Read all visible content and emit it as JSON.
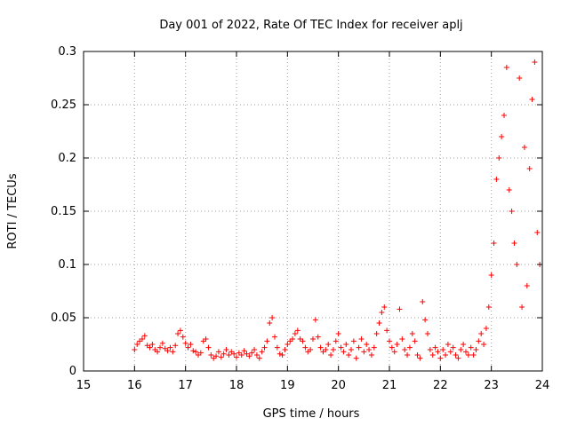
{
  "chart_data": {
    "type": "scatter",
    "title": "Day 001 of 2022, Rate Of TEC Index for receiver aplj",
    "xlabel": "GPS time / hours",
    "ylabel": "ROTI / TECUs",
    "xlim": [
      15,
      24
    ],
    "ylim": [
      0,
      0.3
    ],
    "grid": true,
    "xticks": [
      15,
      16,
      17,
      18,
      19,
      20,
      21,
      22,
      23,
      24
    ],
    "yticks": [
      0,
      0.05,
      0.1,
      0.15,
      0.2,
      0.25,
      0.3
    ],
    "xtick_labels": [
      "15",
      "16",
      "17",
      "18",
      "19",
      "20",
      "21",
      "22",
      "23",
      "24"
    ],
    "ytick_labels": [
      "0",
      "0.05",
      "0.1",
      "0.15",
      "0.2",
      "0.25",
      "0.3"
    ],
    "marker": "+",
    "marker_color": "#ff0000",
    "series": [
      {
        "name": "ROTI",
        "points": [
          [
            16.0,
            0.02
          ],
          [
            16.05,
            0.025
          ],
          [
            16.1,
            0.028
          ],
          [
            16.15,
            0.03
          ],
          [
            16.2,
            0.033
          ],
          [
            16.25,
            0.024
          ],
          [
            16.3,
            0.022
          ],
          [
            16.35,
            0.025
          ],
          [
            16.4,
            0.02
          ],
          [
            16.45,
            0.018
          ],
          [
            16.5,
            0.022
          ],
          [
            16.55,
            0.026
          ],
          [
            16.6,
            0.021
          ],
          [
            16.65,
            0.019
          ],
          [
            16.7,
            0.022
          ],
          [
            16.75,
            0.018
          ],
          [
            16.8,
            0.024
          ],
          [
            16.85,
            0.035
          ],
          [
            16.9,
            0.038
          ],
          [
            16.95,
            0.032
          ],
          [
            17.0,
            0.026
          ],
          [
            17.05,
            0.022
          ],
          [
            17.1,
            0.025
          ],
          [
            17.15,
            0.019
          ],
          [
            17.2,
            0.018
          ],
          [
            17.25,
            0.015
          ],
          [
            17.3,
            0.017
          ],
          [
            17.35,
            0.028
          ],
          [
            17.4,
            0.03
          ],
          [
            17.45,
            0.022
          ],
          [
            17.5,
            0.015
          ],
          [
            17.55,
            0.012
          ],
          [
            17.6,
            0.014
          ],
          [
            17.65,
            0.018
          ],
          [
            17.7,
            0.013
          ],
          [
            17.75,
            0.016
          ],
          [
            17.8,
            0.02
          ],
          [
            17.85,
            0.015
          ],
          [
            17.9,
            0.018
          ],
          [
            17.95,
            0.016
          ],
          [
            18.0,
            0.013
          ],
          [
            18.05,
            0.017
          ],
          [
            18.1,
            0.015
          ],
          [
            18.15,
            0.019
          ],
          [
            18.2,
            0.016
          ],
          [
            18.25,
            0.014
          ],
          [
            18.3,
            0.017
          ],
          [
            18.35,
            0.02
          ],
          [
            18.4,
            0.015
          ],
          [
            18.45,
            0.012
          ],
          [
            18.5,
            0.018
          ],
          [
            18.55,
            0.022
          ],
          [
            18.6,
            0.028
          ],
          [
            18.65,
            0.045
          ],
          [
            18.7,
            0.05
          ],
          [
            18.75,
            0.032
          ],
          [
            18.8,
            0.022
          ],
          [
            18.85,
            0.016
          ],
          [
            18.9,
            0.015
          ],
          [
            18.95,
            0.02
          ],
          [
            19.0,
            0.025
          ],
          [
            19.05,
            0.028
          ],
          [
            19.1,
            0.03
          ],
          [
            19.15,
            0.035
          ],
          [
            19.2,
            0.038
          ],
          [
            19.25,
            0.03
          ],
          [
            19.3,
            0.028
          ],
          [
            19.35,
            0.022
          ],
          [
            19.4,
            0.018
          ],
          [
            19.45,
            0.02
          ],
          [
            19.5,
            0.03
          ],
          [
            19.55,
            0.048
          ],
          [
            19.6,
            0.032
          ],
          [
            19.65,
            0.022
          ],
          [
            19.7,
            0.018
          ],
          [
            19.75,
            0.02
          ],
          [
            19.8,
            0.025
          ],
          [
            19.85,
            0.015
          ],
          [
            19.9,
            0.02
          ],
          [
            19.95,
            0.028
          ],
          [
            20.0,
            0.035
          ],
          [
            20.05,
            0.022
          ],
          [
            20.1,
            0.018
          ],
          [
            20.15,
            0.025
          ],
          [
            20.2,
            0.015
          ],
          [
            20.25,
            0.02
          ],
          [
            20.3,
            0.028
          ],
          [
            20.35,
            0.012
          ],
          [
            20.4,
            0.022
          ],
          [
            20.45,
            0.03
          ],
          [
            20.5,
            0.018
          ],
          [
            20.55,
            0.025
          ],
          [
            20.6,
            0.02
          ],
          [
            20.65,
            0.015
          ],
          [
            20.7,
            0.022
          ],
          [
            20.75,
            0.035
          ],
          [
            20.8,
            0.045
          ],
          [
            20.85,
            0.055
          ],
          [
            20.9,
            0.06
          ],
          [
            20.95,
            0.038
          ],
          [
            21.0,
            0.028
          ],
          [
            21.05,
            0.022
          ],
          [
            21.1,
            0.018
          ],
          [
            21.15,
            0.025
          ],
          [
            21.2,
            0.058
          ],
          [
            21.25,
            0.03
          ],
          [
            21.3,
            0.02
          ],
          [
            21.35,
            0.015
          ],
          [
            21.4,
            0.022
          ],
          [
            21.45,
            0.035
          ],
          [
            21.5,
            0.028
          ],
          [
            21.55,
            0.015
          ],
          [
            21.6,
            0.012
          ],
          [
            21.65,
            0.065
          ],
          [
            21.7,
            0.048
          ],
          [
            21.75,
            0.035
          ],
          [
            21.8,
            0.02
          ],
          [
            21.85,
            0.015
          ],
          [
            21.9,
            0.022
          ],
          [
            21.95,
            0.018
          ],
          [
            22.0,
            0.012
          ],
          [
            22.05,
            0.02
          ],
          [
            22.1,
            0.015
          ],
          [
            22.15,
            0.025
          ],
          [
            22.2,
            0.018
          ],
          [
            22.25,
            0.022
          ],
          [
            22.3,
            0.015
          ],
          [
            22.35,
            0.012
          ],
          [
            22.4,
            0.02
          ],
          [
            22.45,
            0.025
          ],
          [
            22.5,
            0.018
          ],
          [
            22.55,
            0.015
          ],
          [
            22.6,
            0.022
          ],
          [
            22.65,
            0.015
          ],
          [
            22.7,
            0.02
          ],
          [
            22.75,
            0.028
          ],
          [
            22.8,
            0.035
          ],
          [
            22.85,
            0.025
          ],
          [
            22.9,
            0.04
          ],
          [
            22.95,
            0.06
          ],
          [
            23.0,
            0.09
          ],
          [
            23.05,
            0.12
          ],
          [
            23.1,
            0.18
          ],
          [
            23.15,
            0.2
          ],
          [
            23.2,
            0.22
          ],
          [
            23.25,
            0.24
          ],
          [
            23.3,
            0.285
          ],
          [
            23.35,
            0.17
          ],
          [
            23.4,
            0.15
          ],
          [
            23.45,
            0.12
          ],
          [
            23.5,
            0.1
          ],
          [
            23.55,
            0.275
          ],
          [
            23.6,
            0.06
          ],
          [
            23.65,
            0.21
          ],
          [
            23.7,
            0.08
          ],
          [
            23.75,
            0.19
          ],
          [
            23.8,
            0.255
          ],
          [
            23.85,
            0.29
          ],
          [
            23.9,
            0.13
          ],
          [
            23.95,
            0.1
          ]
        ]
      }
    ]
  }
}
